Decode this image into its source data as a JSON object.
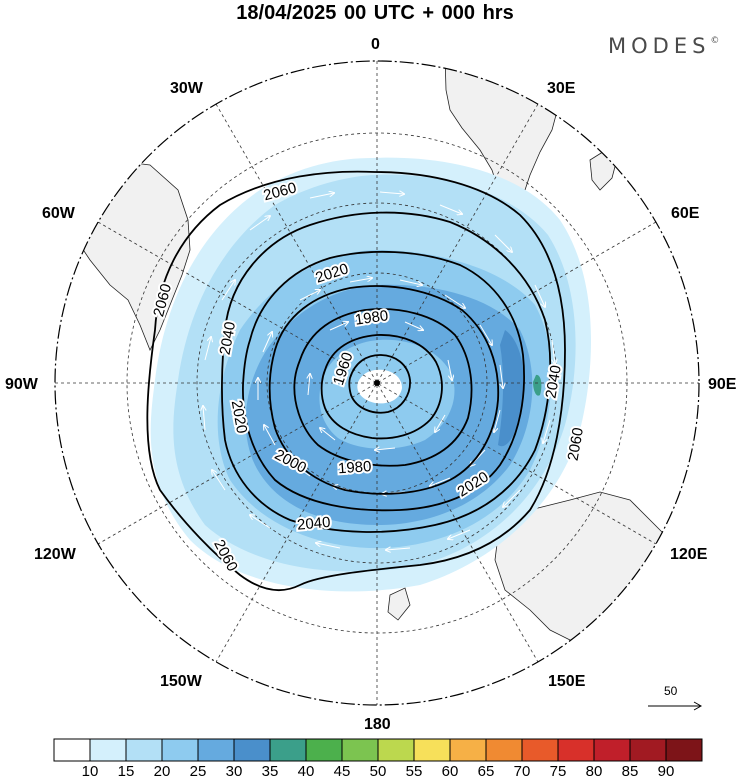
{
  "title": "18/04/2025  00 UTC  + 000 hrs",
  "brand": "MODES",
  "brand_mark": "©",
  "longitude_labels": {
    "n0": "0",
    "n30e": "30E",
    "n60e": "60E",
    "n90e": "90E",
    "n120e": "120E",
    "n150e": "150E",
    "n180": "180",
    "n150w": "150W",
    "n120w": "120W",
    "n90w": "90W",
    "n60w": "60W",
    "n30w": "30W"
  },
  "contour_labels": [
    "2060",
    "2060",
    "2040",
    "2020",
    "1980",
    "1960",
    "2020",
    "2000",
    "1980",
    "2040",
    "2040",
    "2020",
    "2060",
    "2060"
  ],
  "reference_vector": "50",
  "legend": {
    "values": [
      "10",
      "15",
      "20",
      "25",
      "30",
      "35",
      "40",
      "45",
      "50",
      "55",
      "60",
      "65",
      "70",
      "75",
      "80",
      "85",
      "90"
    ],
    "colors": [
      "#ffffff",
      "#d4f0fc",
      "#b3e0f6",
      "#8ecbef",
      "#65aadf",
      "#4a8fcb",
      "#3b9f8a",
      "#4cb04c",
      "#7cc450",
      "#bcd84e",
      "#f7e05a",
      "#f6b046",
      "#f08a32",
      "#e85a2a",
      "#d8302a",
      "#c01f2a",
      "#a11a22",
      "#7d1418"
    ]
  },
  "icons": {
    "pole_marker": "dot-icon",
    "reference_arrow": "arrow-right-icon"
  }
}
